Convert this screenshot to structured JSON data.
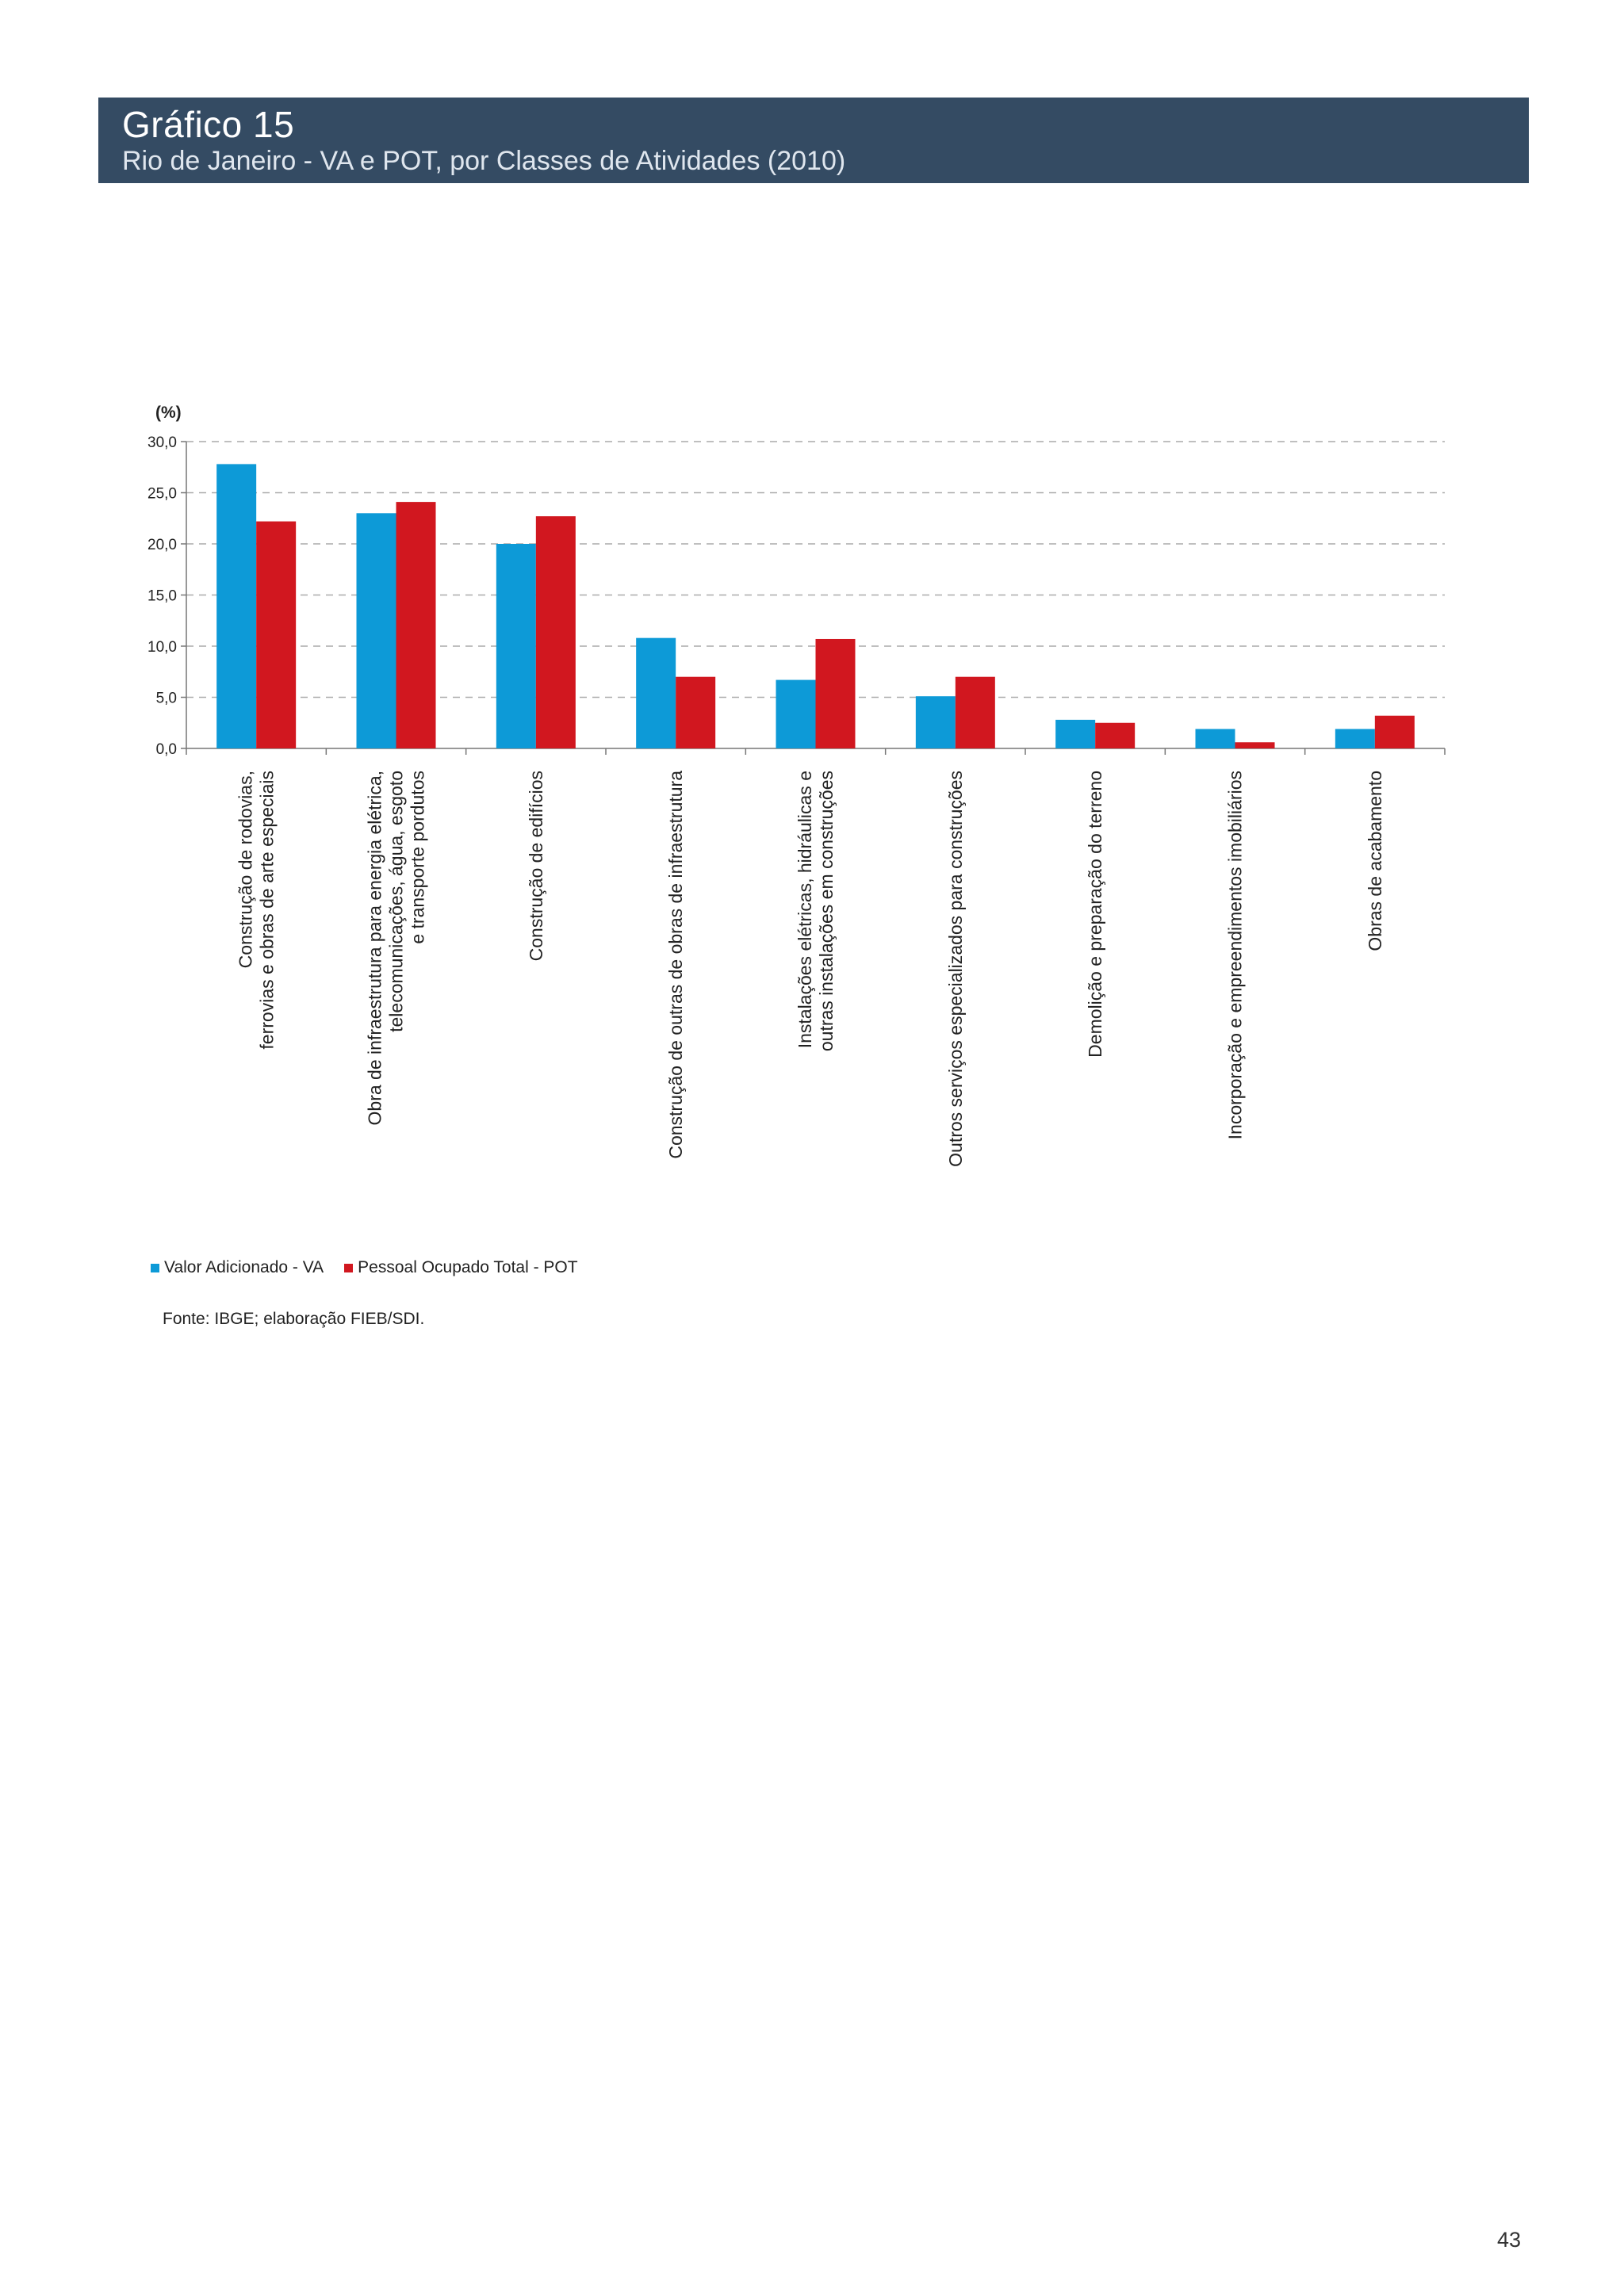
{
  "header": {
    "title": "Gráfico 15",
    "subtitle": "Rio de Janeiro - VA e POT, por Classes de Atividades (2010)"
  },
  "source": "Fonte: IBGE; elaboração FIEB/SDI.",
  "page_number": "43",
  "colors": {
    "header_bg": "#344b63",
    "va": "#0d9ad7",
    "pot": "#d1171f",
    "grid": "#aaaaaa"
  },
  "chart_data": {
    "type": "bar",
    "title": "Rio de Janeiro - VA e POT, por Classes de Atividades (2010)",
    "ylabel": "(%)",
    "xlabel": "",
    "ylim": [
      0,
      30
    ],
    "yticks": [
      "0,0",
      "5,0",
      "10,0",
      "15,0",
      "20,0",
      "25,0",
      "30,0"
    ],
    "grid": true,
    "legend_position": "bottom-left",
    "categories": [
      [
        "Construção de rodovias,",
        "ferrovias e obras de arte especiais"
      ],
      [
        "Obra de infraestrutura para energia elétrica,",
        "telecomunicações, água, esgoto",
        "e transporte pordutos"
      ],
      [
        "Construção de edifícios"
      ],
      [
        "Construção  de outras de obras de infraestrutura"
      ],
      [
        "Instalações elétricas, hidráulicas e",
        "outras instalações em construções"
      ],
      [
        "Outros serviços especializados para construções"
      ],
      [
        "Demolição e preparação do terreno"
      ],
      [
        "Incorporação e empreendimentos imobiliários"
      ],
      [
        "Obras de acabamento"
      ]
    ],
    "series": [
      {
        "name": "Valor Adicionado - VA",
        "color": "#0d9ad7",
        "values": [
          27.8,
          23.0,
          20.0,
          10.8,
          6.7,
          5.1,
          2.8,
          1.9,
          1.9
        ]
      },
      {
        "name": "Pessoal Ocupado Total - POT",
        "color": "#d1171f",
        "values": [
          22.2,
          24.1,
          22.7,
          7.0,
          10.7,
          7.0,
          2.5,
          0.6,
          3.2
        ]
      }
    ]
  }
}
